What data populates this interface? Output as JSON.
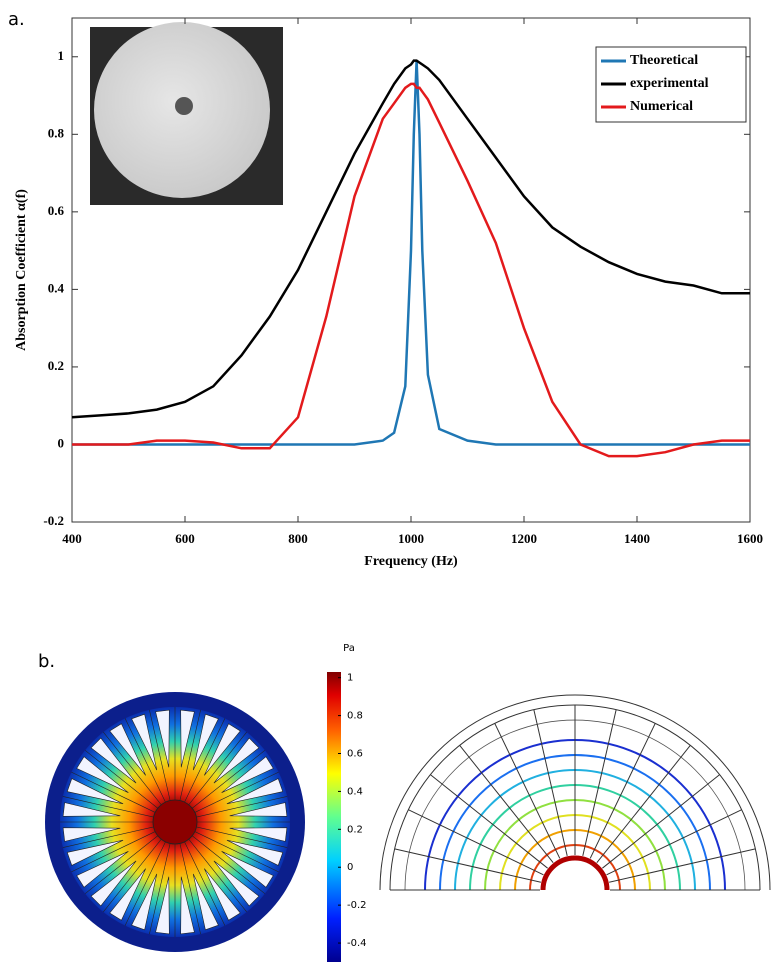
{
  "panel_labels": [
    "a.",
    "b."
  ],
  "chart_data": [
    {
      "type": "line",
      "xlabel": "Frequency (Hz)",
      "ylabel": "Absorption Coefficient α(f)",
      "x": [
        400,
        450,
        500,
        550,
        600,
        650,
        700,
        750,
        800,
        850,
        900,
        950,
        970,
        990,
        1000,
        1005,
        1010,
        1015,
        1020,
        1030,
        1050,
        1100,
        1150,
        1200,
        1250,
        1300,
        1350,
        1400,
        1450,
        1500,
        1550,
        1600
      ],
      "series": [
        {
          "name": "Theoretical",
          "color": "#1f77b4",
          "values": [
            0,
            0,
            0,
            0,
            0,
            0,
            0,
            0,
            0,
            0,
            0,
            0.01,
            0.03,
            0.15,
            0.5,
            0.8,
            0.99,
            0.8,
            0.5,
            0.18,
            0.04,
            0.01,
            0,
            0,
            0,
            0,
            0,
            0,
            0,
            0,
            0,
            0
          ]
        },
        {
          "name": "experimental",
          "color": "#000000",
          "values": [
            0.07,
            0.075,
            0.08,
            0.09,
            0.11,
            0.15,
            0.23,
            0.33,
            0.45,
            0.6,
            0.75,
            0.88,
            0.93,
            0.97,
            0.98,
            0.99,
            0.99,
            0.985,
            0.98,
            0.97,
            0.94,
            0.84,
            0.74,
            0.64,
            0.56,
            0.51,
            0.47,
            0.44,
            0.42,
            0.41,
            0.39,
            0.39
          ]
        },
        {
          "name": "Numerical",
          "color": "#e31a1c",
          "values": [
            0,
            0,
            0,
            0.01,
            0.01,
            0.005,
            -0.01,
            -0.01,
            0.07,
            0.33,
            0.64,
            0.84,
            0.88,
            0.92,
            0.93,
            0.93,
            0.92,
            0.92,
            0.91,
            0.89,
            0.83,
            0.68,
            0.52,
            0.3,
            0.11,
            0,
            -0.03,
            -0.03,
            -0.02,
            0,
            0.01,
            0.01
          ]
        }
      ],
      "xlim": [
        400,
        1600
      ],
      "xticks": [
        400,
        600,
        800,
        1000,
        1200,
        1400,
        1600
      ],
      "ylim": [
        -0.2,
        1.1
      ],
      "yticks": [
        -0.2,
        0,
        0.2,
        0.4,
        0.6,
        0.8,
        1
      ],
      "legend": "upper right"
    },
    {
      "type": "colorbar",
      "label": "Pa",
      "ylim": [
        -0.5,
        1.03
      ],
      "yticks": [
        1,
        0.8,
        0.6,
        0.4,
        0.2,
        0,
        -0.2,
        -0.4
      ]
    }
  ]
}
